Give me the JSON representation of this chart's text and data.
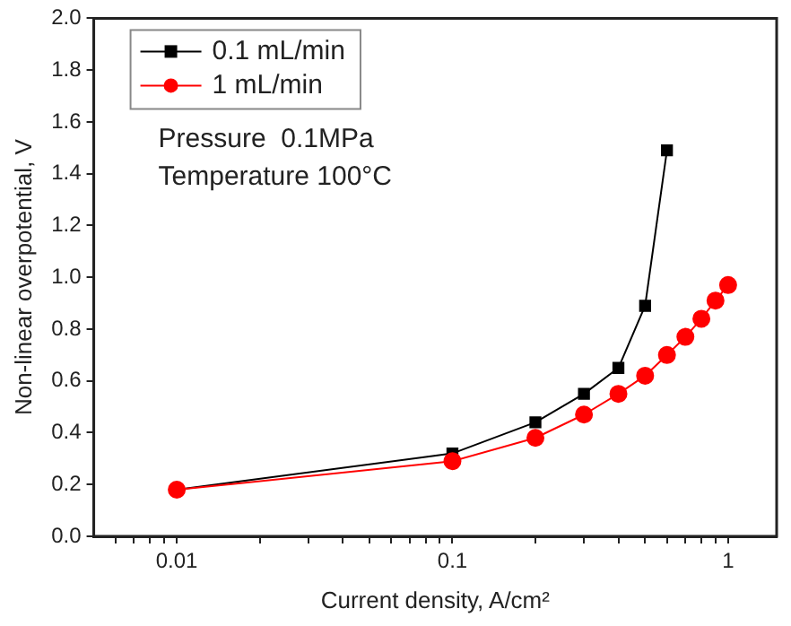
{
  "chart_data": {
    "type": "line",
    "xlabel": "Current density, A/cm²",
    "ylabel": "Non-linear overpotential, V",
    "log": "x",
    "xlim": [
      0.005,
      1.5
    ],
    "xticks": [
      {
        "value": 0.006,
        "label": null
      },
      {
        "value": 0.007,
        "label": null
      },
      {
        "value": 0.008,
        "label": null
      },
      {
        "value": 0.009,
        "label": null
      },
      0.01,
      {
        "value": 0.02,
        "label": null
      },
      {
        "value": 0.03,
        "label": null
      },
      {
        "value": 0.04,
        "label": null
      },
      {
        "value": 0.05,
        "label": null
      },
      {
        "value": 0.06,
        "label": null
      },
      {
        "value": 0.07,
        "label": null
      },
      {
        "value": 0.08,
        "label": null
      },
      {
        "value": 0.09,
        "label": null
      },
      0.1,
      {
        "value": 0.2,
        "label": null
      },
      {
        "value": 0.3,
        "label": null
      },
      {
        "value": 0.4,
        "label": null
      },
      {
        "value": 0.5,
        "label": null
      },
      {
        "value": 0.6,
        "label": null
      },
      {
        "value": 0.7,
        "label": null
      },
      {
        "value": 0.8,
        "label": null
      },
      {
        "value": 0.9,
        "label": null
      },
      1
    ],
    "ylim": [
      0,
      2
    ],
    "yticks": [
      {
        "value": 0,
        "label": "0.0"
      },
      0.2,
      0.4,
      0.6,
      0.8,
      {
        "value": 1,
        "label": "1.0"
      },
      1.2,
      1.4,
      1.6,
      1.8,
      {
        "value": 2,
        "label": "2.0"
      }
    ],
    "grid": false,
    "legend": "top left",
    "line_style": "solid",
    "annotations": [
      "Pressure  0.1MPa",
      "Temperature 100°C"
    ],
    "series": [
      {
        "name": "0.1 mL/min",
        "color": "#000000",
        "marker": "square",
        "x": [
          0.01,
          0.1,
          0.2,
          0.3,
          0.4,
          0.5,
          0.6
        ],
        "values": [
          0.18,
          0.32,
          0.44,
          0.55,
          0.65,
          0.89,
          1.49
        ]
      },
      {
        "name": "1 mL/min",
        "color": "#ff0000",
        "marker": "circle",
        "x": [
          0.01,
          0.1,
          0.2,
          0.3,
          0.4,
          0.5,
          0.6,
          0.7,
          0.8,
          0.9,
          1
        ],
        "values": [
          0.18,
          0.29,
          0.38,
          0.47,
          0.55,
          0.62,
          0.7,
          0.77,
          0.84,
          0.91,
          0.97
        ]
      }
    ]
  }
}
